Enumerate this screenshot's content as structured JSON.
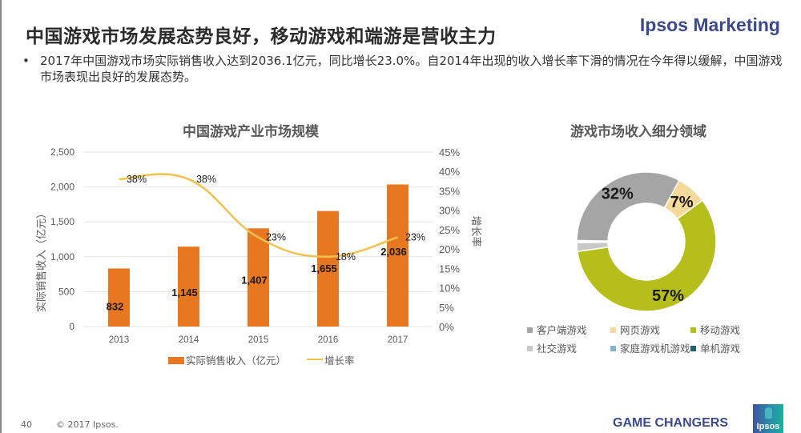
{
  "header": {
    "title": "中国游戏市场发展态势良好，移动游戏和端游是营收主力",
    "brand": "Ipsos Marketing"
  },
  "bullet": {
    "symbol": "•",
    "text": "2017年中国游戏市场实际销售收入达到2036.1亿元，同比增长23.0%。自2014年出现的收入增长率下滑的情况在今年得以缓解，中国游戏市场表现出良好的发展态势。"
  },
  "chart_data": [
    {
      "type": "bar",
      "title": "中国游戏产业市场规模",
      "categories": [
        "2013",
        "2014",
        "2015",
        "2016",
        "2017"
      ],
      "series": [
        {
          "name": "实际销售收入（亿元）",
          "type": "bar",
          "axis": "left",
          "color": "#e87722",
          "values": [
            832,
            1145,
            1407,
            1655,
            2036
          ],
          "labels": [
            "832",
            "1,145",
            "1,407",
            "1,655",
            "2,036"
          ]
        },
        {
          "name": "增长率",
          "type": "line",
          "axis": "right",
          "color": "#f2c14e",
          "values": [
            38,
            38,
            23,
            18,
            23
          ],
          "labels": [
            "38%",
            "38%",
            "23%",
            "18%",
            "23%"
          ]
        }
      ],
      "ylabel": "实际销售收入（亿元）",
      "ylabel_right": "增长率",
      "ylim": [
        0,
        2500
      ],
      "yticks": [
        "0",
        "500",
        "1,000",
        "1,500",
        "2,000",
        "2,500"
      ],
      "ylim_right": [
        0,
        45
      ],
      "yticks_right": [
        "0%",
        "5%",
        "10%",
        "15%",
        "20%",
        "25%",
        "30%",
        "35%",
        "40%",
        "45%"
      ],
      "grid": true,
      "legend": "bottom"
    },
    {
      "type": "pie",
      "title": "游戏市场收入细分领域",
      "donut": true,
      "slices": [
        {
          "name": "客户端游戏",
          "value": 32,
          "label": "32%",
          "color": "#a5a5a5"
        },
        {
          "name": "网页游戏",
          "value": 7,
          "label": "7%",
          "color": "#f5d99a"
        },
        {
          "name": "移动游戏",
          "value": 57,
          "label": "57%",
          "color": "#b5be1a"
        },
        {
          "name": "社交游戏",
          "value": 2,
          "label": "",
          "color": "#c8c8c8"
        },
        {
          "name": "家庭游戏机游戏",
          "value": 0.3,
          "label": "",
          "color": "#7fb8c8"
        },
        {
          "name": "单机游戏",
          "value": 0.2,
          "label": "",
          "color": "#1f5f6e"
        }
      ],
      "legend": "bottom"
    }
  ],
  "footer": {
    "page": "40",
    "copyright": "© 2017 Ipsos.",
    "tagline": "GAME CHANGERS",
    "logo_text": "Ipsos"
  }
}
